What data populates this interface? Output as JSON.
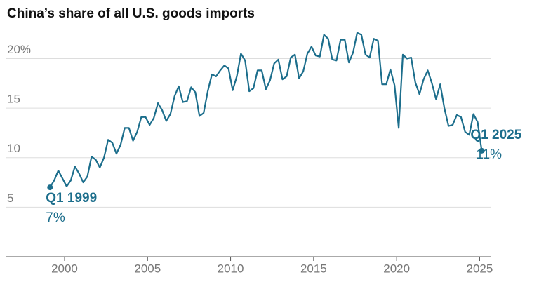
{
  "chart_data": {
    "type": "line",
    "title": "China’s share of all U.S. goods imports",
    "x": [
      1999.125,
      1999.375,
      1999.625,
      1999.875,
      2000.125,
      2000.375,
      2000.625,
      2000.875,
      2001.125,
      2001.375,
      2001.625,
      2001.875,
      2002.125,
      2002.375,
      2002.625,
      2002.875,
      2003.125,
      2003.375,
      2003.625,
      2003.875,
      2004.125,
      2004.375,
      2004.625,
      2004.875,
      2005.125,
      2005.375,
      2005.625,
      2005.875,
      2006.125,
      2006.375,
      2006.625,
      2006.875,
      2007.125,
      2007.375,
      2007.625,
      2007.875,
      2008.125,
      2008.375,
      2008.625,
      2008.875,
      2009.125,
      2009.375,
      2009.625,
      2009.875,
      2010.125,
      2010.375,
      2010.625,
      2010.875,
      2011.125,
      2011.375,
      2011.625,
      2011.875,
      2012.125,
      2012.375,
      2012.625,
      2012.875,
      2013.125,
      2013.375,
      2013.625,
      2013.875,
      2014.125,
      2014.375,
      2014.625,
      2014.875,
      2015.125,
      2015.375,
      2015.625,
      2015.875,
      2016.125,
      2016.375,
      2016.625,
      2016.875,
      2017.125,
      2017.375,
      2017.625,
      2017.875,
      2018.125,
      2018.375,
      2018.625,
      2018.875,
      2019.125,
      2019.375,
      2019.625,
      2019.875,
      2020.125,
      2020.375,
      2020.625,
      2020.875,
      2021.125,
      2021.375,
      2021.625,
      2021.875,
      2022.125,
      2022.375,
      2022.625,
      2022.875,
      2023.125,
      2023.375,
      2023.625,
      2023.875,
      2024.125,
      2024.375,
      2024.625,
      2024.875,
      2025.125
    ],
    "values": [
      7.0,
      7.7,
      8.7,
      7.9,
      7.1,
      7.7,
      9.1,
      8.4,
      7.5,
      8.1,
      10.1,
      9.8,
      9.0,
      10.0,
      11.8,
      11.5,
      10.4,
      11.3,
      13.0,
      13.0,
      11.7,
      12.6,
      14.1,
      14.1,
      13.3,
      14.0,
      15.5,
      14.8,
      13.7,
      14.4,
      16.2,
      17.2,
      15.6,
      15.7,
      17.1,
      16.6,
      14.2,
      14.5,
      16.7,
      18.4,
      18.2,
      18.8,
      19.3,
      19.0,
      16.8,
      18.2,
      20.5,
      19.8,
      16.7,
      17.0,
      18.8,
      18.8,
      16.9,
      17.8,
      19.5,
      19.9,
      17.9,
      18.2,
      20.1,
      20.4,
      18.0,
      18.7,
      20.5,
      21.2,
      20.3,
      20.2,
      22.4,
      22.0,
      19.9,
      19.8,
      21.9,
      21.9,
      19.6,
      20.6,
      22.6,
      22.4,
      20.4,
      20.1,
      22.0,
      21.8,
      17.4,
      17.4,
      18.9,
      17.3,
      13.0,
      20.4,
      20.0,
      20.1,
      17.6,
      16.4,
      17.9,
      18.8,
      17.5,
      15.9,
      17.4,
      15.0,
      13.2,
      13.3,
      14.3,
      14.1,
      12.6,
      12.3,
      14.4,
      13.6,
      10.7
    ],
    "color": "#1c6e8c",
    "xlim": [
      1996.45,
      2025.7
    ],
    "xticks": [
      2000,
      2005,
      2010,
      2015,
      2020,
      2025
    ],
    "ylim": [
      0,
      23.5
    ],
    "yticks": [
      5,
      10,
      15,
      {
        "value": 20,
        "label": "20%"
      }
    ],
    "grid": true,
    "annotations": [
      {
        "label": "Q1 1999",
        "value_label": "7%"
      },
      {
        "label": "Q1 2025",
        "value_label": "11%"
      }
    ]
  }
}
